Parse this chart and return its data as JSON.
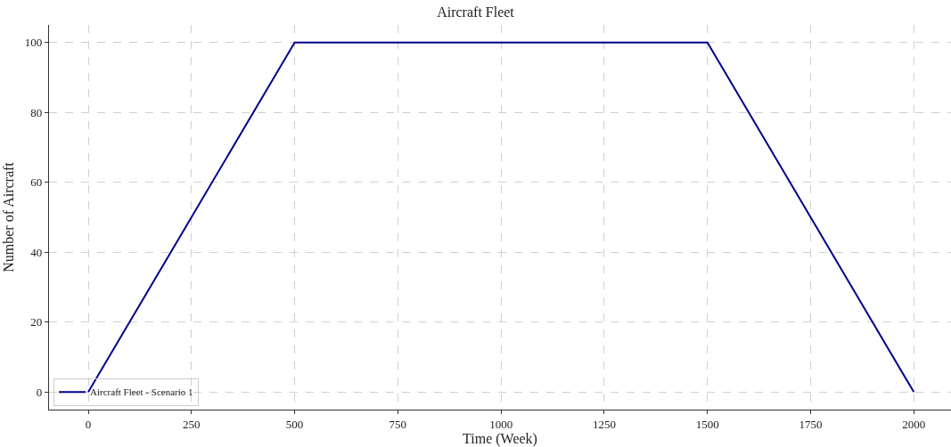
{
  "chart_data": {
    "type": "line",
    "title": "Aircraft Fleet",
    "xlabel": "Time (Week)",
    "ylabel": "Number of Aircraft",
    "x": [
      0,
      500,
      1500,
      2000
    ],
    "series": [
      {
        "name": "Aircraft Fleet - Scenario 1",
        "color": "#00008b",
        "values": [
          0,
          100,
          100,
          0
        ]
      }
    ],
    "xlim": [
      -95,
      2090
    ],
    "xticks": [
      0,
      250,
      500,
      750,
      1000,
      1250,
      1500,
      1750,
      2000
    ],
    "ylim": [
      -5,
      105
    ],
    "yticks": [
      0,
      20,
      40,
      60,
      80,
      100
    ],
    "grid": true,
    "legend": "bottom left",
    "line_style": "solid",
    "marker": "none"
  }
}
